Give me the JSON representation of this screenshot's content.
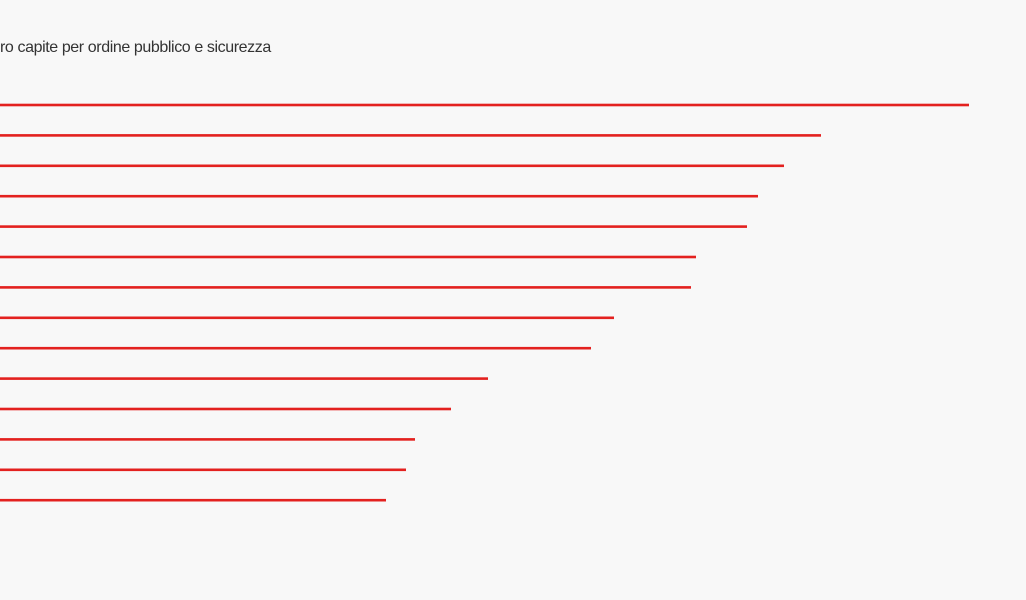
{
  "chart_data": {
    "type": "bar",
    "orientation": "horizontal",
    "title": "ro capite per ordine pubblico e sicurezza",
    "values": [
      969,
      821,
      784,
      758,
      747,
      696,
      691,
      614,
      591,
      488,
      451,
      415,
      406,
      386
    ],
    "color": "#e3211f"
  }
}
